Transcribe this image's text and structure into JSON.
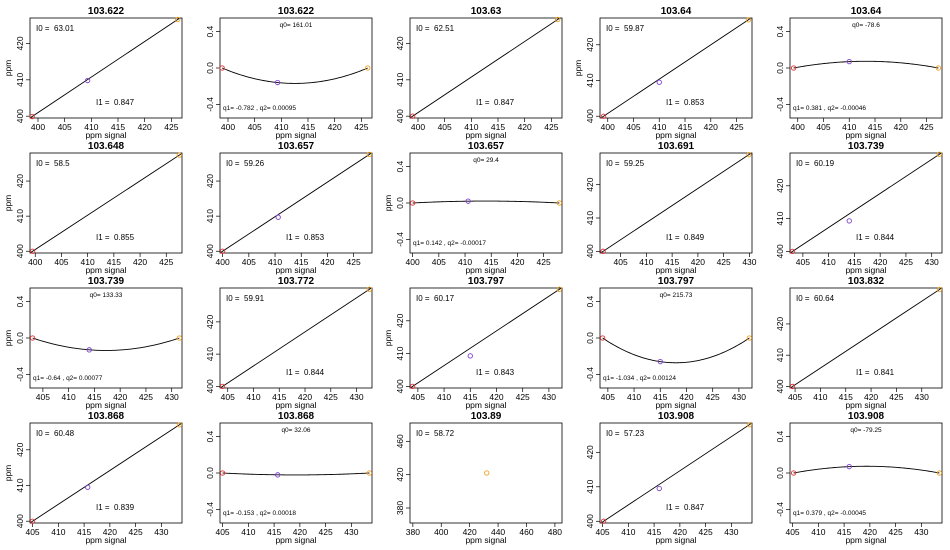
{
  "chart_data": [
    {
      "type": "line",
      "title": "103.622",
      "model": "linear",
      "xlabel": "ppm signal",
      "ylabel": "ppm",
      "xlim": [
        398.5,
        427
      ],
      "ylim": [
        399.5,
        427
      ],
      "xticks": [
        400,
        405,
        410,
        415,
        420,
        425
      ],
      "yticks": [
        400,
        410,
        420
      ],
      "anno_left_label": "I0 =",
      "anno_left_value": "63.01",
      "anno_right_label": "I1 =",
      "anno_right_value": "0.847",
      "points": [
        {
          "x": 398.9,
          "y": 399.9,
          "color": "#e03030"
        },
        {
          "x": 409.3,
          "y": 409.8,
          "color": "#7a40d0"
        },
        {
          "x": 426.2,
          "y": 426.6,
          "color": "#f0a020"
        }
      ]
    },
    {
      "type": "line",
      "title": "103.622",
      "model": "quadratic",
      "xlabel": "ppm signal",
      "ylabel": "",
      "xlim": [
        398.5,
        427
      ],
      "ylim": [
        -0.55,
        0.55
      ],
      "xticks": [
        400,
        405,
        410,
        415,
        420,
        425
      ],
      "yticks": [
        -0.4,
        0.0,
        0.4
      ],
      "anno_top": "q0= 161.01",
      "anno_bottom": "q1= -0.782 , q2= 0.00095",
      "points": [
        {
          "x": 398.9,
          "y": 0.0,
          "color": "#e03030"
        },
        {
          "x": 409.3,
          "y": -0.16,
          "color": "#7a40d0"
        },
        {
          "x": 426.2,
          "y": 0.0,
          "color": "#f0a020"
        }
      ]
    },
    {
      "type": "line",
      "title": "103.63",
      "model": "linear",
      "xlabel": "ppm signal",
      "ylabel": "",
      "xlim": [
        398.5,
        427
      ],
      "ylim": [
        399.5,
        427
      ],
      "xticks": [
        400,
        405,
        410,
        415,
        420,
        425
      ],
      "yticks": [
        400,
        410,
        420
      ],
      "anno_left_label": "I0 =",
      "anno_left_value": "62.51",
      "anno_right_label": "I1 =",
      "anno_right_value": "0.847",
      "points": [
        {
          "x": 399.0,
          "y": 400.0,
          "color": "#e03030"
        },
        {
          "x": 426.2,
          "y": 426.6,
          "color": "#f0a020"
        }
      ]
    },
    {
      "type": "line",
      "title": "103.64",
      "model": "linear",
      "xlabel": "ppm signal",
      "ylabel": "ppm",
      "xlim": [
        398.5,
        428
      ],
      "ylim": [
        399.5,
        427.5
      ],
      "xticks": [
        400,
        405,
        410,
        415,
        420,
        425
      ],
      "yticks": [
        400,
        410,
        420
      ],
      "anno_left_label": "I0 =",
      "anno_left_value": "59.87",
      "anno_right_label": "I1 =",
      "anno_right_value": "0.853",
      "points": [
        {
          "x": 399.2,
          "y": 400.0,
          "color": "#e03030"
        },
        {
          "x": 410.0,
          "y": 409.5,
          "color": "#7a40d0"
        },
        {
          "x": 427.3,
          "y": 427.0,
          "color": "#f0a020"
        }
      ]
    },
    {
      "type": "line",
      "title": "103.64",
      "model": "quadratic",
      "xlabel": "ppm signal",
      "ylabel": "",
      "xlim": [
        398.5,
        428
      ],
      "ylim": [
        -0.55,
        0.55
      ],
      "xticks": [
        400,
        405,
        410,
        415,
        420,
        425
      ],
      "yticks": [
        -0.4,
        0.0,
        0.4
      ],
      "anno_top": "q0= -78.6",
      "anno_bottom": "q1= 0.381 , q2= -0.00046",
      "points": [
        {
          "x": 399.2,
          "y": 0.0,
          "color": "#e03030"
        },
        {
          "x": 410.0,
          "y": 0.07,
          "color": "#7a40d0"
        },
        {
          "x": 427.3,
          "y": 0.0,
          "color": "#f0a020"
        }
      ]
    },
    {
      "type": "line",
      "title": "103.648",
      "model": "linear",
      "xlabel": "ppm signal",
      "ylabel": "ppm",
      "xlim": [
        399,
        428
      ],
      "ylim": [
        399.5,
        428
      ],
      "xticks": [
        400,
        405,
        410,
        415,
        420,
        425
      ],
      "yticks": [
        400,
        410,
        420
      ],
      "anno_left_label": "I0 =",
      "anno_left_value": "58.5",
      "anno_right_label": "I1 =",
      "anno_right_value": "0.855",
      "points": [
        {
          "x": 399.5,
          "y": 400.0,
          "color": "#e03030"
        },
        {
          "x": 427.5,
          "y": 427.4,
          "color": "#f0a020"
        }
      ]
    },
    {
      "type": "line",
      "title": "103.657",
      "model": "linear",
      "xlabel": "ppm signal",
      "ylabel": "",
      "xlim": [
        399.5,
        428.5
      ],
      "ylim": [
        399.5,
        428
      ],
      "xticks": [
        400,
        405,
        410,
        415,
        420,
        425
      ],
      "yticks": [
        400,
        410,
        420
      ],
      "anno_left_label": "I0 =",
      "anno_left_value": "59.26",
      "anno_right_label": "I1 =",
      "anno_right_value": "0.853",
      "points": [
        {
          "x": 400.0,
          "y": 400.0,
          "color": "#e03030"
        },
        {
          "x": 410.6,
          "y": 409.7,
          "color": "#7a40d0"
        },
        {
          "x": 428.0,
          "y": 427.6,
          "color": "#f0a020"
        }
      ]
    },
    {
      "type": "line",
      "title": "103.657",
      "model": "quadratic",
      "xlabel": "ppm signal",
      "ylabel": "ppm",
      "xlim": [
        399.5,
        428.5
      ],
      "ylim": [
        -0.55,
        0.55
      ],
      "xticks": [
        400,
        405,
        410,
        415,
        420,
        425
      ],
      "yticks": [
        -0.4,
        0.0,
        0.4
      ],
      "anno_top": "q0= 29.4",
      "anno_bottom": "q1= 0.142 , q2= -0.00017",
      "points": [
        {
          "x": 400.0,
          "y": 0.0,
          "color": "#e03030"
        },
        {
          "x": 410.6,
          "y": 0.02,
          "color": "#7a40d0"
        },
        {
          "x": 428.0,
          "y": 0.0,
          "color": "#f0a020"
        }
      ]
    },
    {
      "type": "line",
      "title": "103.691",
      "model": "linear",
      "xlabel": "ppm signal",
      "ylabel": "",
      "xlim": [
        401,
        430.5
      ],
      "ylim": [
        399.5,
        429.5
      ],
      "xticks": [
        405,
        410,
        415,
        420,
        425,
        430
      ],
      "yticks": [
        400,
        410,
        420
      ],
      "anno_left_label": "I0 =",
      "anno_left_value": "59.25",
      "anno_right_label": "I1 =",
      "anno_right_value": "0.849",
      "points": [
        {
          "x": 401.6,
          "y": 400.0,
          "color": "#e03030"
        },
        {
          "x": 429.9,
          "y": 429.0,
          "color": "#f0a020"
        }
      ]
    },
    {
      "type": "line",
      "title": "103.739",
      "model": "linear",
      "xlabel": "ppm signal",
      "ylabel": "",
      "xlim": [
        402.5,
        432
      ],
      "ylim": [
        399.5,
        430
      ],
      "xticks": [
        405,
        410,
        415,
        420,
        425,
        430
      ],
      "yticks": [
        400,
        410,
        420
      ],
      "anno_left_label": "I0 =",
      "anno_left_value": "60.19",
      "anno_right_label": "I1 =",
      "anno_right_value": "0.844",
      "points": [
        {
          "x": 403.0,
          "y": 400.0,
          "color": "#e03030"
        },
        {
          "x": 414.0,
          "y": 409.3,
          "color": "#7a40d0"
        },
        {
          "x": 431.5,
          "y": 429.6,
          "color": "#f0a020"
        }
      ]
    },
    {
      "type": "line",
      "title": "103.739",
      "model": "quadratic",
      "xlabel": "ppm signal",
      "ylabel": "ppm",
      "xlim": [
        402.5,
        432
      ],
      "ylim": [
        -0.55,
        0.55
      ],
      "xticks": [
        405,
        410,
        415,
        420,
        425,
        430
      ],
      "yticks": [
        -0.4,
        0.0,
        0.4
      ],
      "anno_top": "q0= 133.33",
      "anno_bottom": "q1= -0.64 , q2= 0.00077",
      "points": [
        {
          "x": 403.0,
          "y": 0.0,
          "color": "#e03030"
        },
        {
          "x": 414.0,
          "y": -0.13,
          "color": "#7a40d0"
        },
        {
          "x": 431.5,
          "y": 0.0,
          "color": "#f0a020"
        }
      ]
    },
    {
      "type": "line",
      "title": "103.772",
      "model": "linear",
      "xlabel": "ppm signal",
      "ylabel": "",
      "xlim": [
        403.5,
        433
      ],
      "ylim": [
        399.5,
        430.5
      ],
      "xticks": [
        405,
        410,
        415,
        420,
        425,
        430
      ],
      "yticks": [
        400,
        410,
        420
      ],
      "anno_left_label": "I0 =",
      "anno_left_value": "59.91",
      "anno_right_label": "I1 =",
      "anno_right_value": "0.844",
      "points": [
        {
          "x": 404.0,
          "y": 400.0,
          "color": "#e03030"
        },
        {
          "x": 432.5,
          "y": 430.1,
          "color": "#f0a020"
        }
      ]
    },
    {
      "type": "line",
      "title": "103.797",
      "model": "linear",
      "xlabel": "ppm signal",
      "ylabel": "ppm",
      "xlim": [
        403.5,
        432.5
      ],
      "ylim": [
        399.5,
        430
      ],
      "xticks": [
        405,
        410,
        415,
        420,
        425,
        430
      ],
      "yticks": [
        400,
        410,
        420
      ],
      "anno_left_label": "I0 =",
      "anno_left_value": "60.17",
      "anno_right_label": "I1 =",
      "anno_right_value": "0.843",
      "points": [
        {
          "x": 404.0,
          "y": 400.0,
          "color": "#e03030"
        },
        {
          "x": 415.0,
          "y": 409.3,
          "color": "#7a40d0"
        },
        {
          "x": 432.0,
          "y": 429.6,
          "color": "#f0a020"
        }
      ]
    },
    {
      "type": "line",
      "title": "103.797",
      "model": "quadratic",
      "xlabel": "ppm signal",
      "ylabel": "",
      "xlim": [
        403.5,
        432.5
      ],
      "ylim": [
        -0.55,
        0.55
      ],
      "xticks": [
        405,
        410,
        415,
        420,
        425,
        430
      ],
      "yticks": [
        -0.4,
        0.0,
        0.4
      ],
      "anno_top": "q0= 215.73",
      "anno_bottom": "q1= -1.034 , q2= 0.00124",
      "points": [
        {
          "x": 404.0,
          "y": 0.0,
          "color": "#e03030"
        },
        {
          "x": 415.0,
          "y": -0.26,
          "color": "#7a40d0"
        },
        {
          "x": 432.0,
          "y": 0.0,
          "color": "#f0a020"
        }
      ]
    },
    {
      "type": "line",
      "title": "103.832",
      "model": "linear",
      "xlabel": "ppm signal",
      "ylabel": "",
      "xlim": [
        404,
        434
      ],
      "ylim": [
        399.5,
        431.5
      ],
      "xticks": [
        405,
        410,
        415,
        420,
        425,
        430
      ],
      "yticks": [
        400,
        410,
        420
      ],
      "anno_left_label": "I0 =",
      "anno_left_value": "60.64",
      "anno_right_label": "I1 =",
      "anno_right_value": "0.841",
      "points": [
        {
          "x": 404.5,
          "y": 400.0,
          "color": "#e03030"
        },
        {
          "x": 433.5,
          "y": 431.0,
          "color": "#f0a020"
        }
      ]
    },
    {
      "type": "line",
      "title": "103.868",
      "model": "linear",
      "xlabel": "ppm signal",
      "ylabel": "ppm",
      "xlim": [
        404.5,
        434
      ],
      "ylim": [
        399.5,
        427.5
      ],
      "xticks": [
        405,
        410,
        415,
        420,
        425,
        430
      ],
      "yticks": [
        400,
        410,
        420
      ],
      "anno_left_label": "I0 =",
      "anno_left_value": "60.48",
      "anno_right_label": "I1 =",
      "anno_right_value": "0.839",
      "points": [
        {
          "x": 405.0,
          "y": 400.0,
          "color": "#e03030"
        },
        {
          "x": 415.7,
          "y": 409.5,
          "color": "#7a40d0"
        },
        {
          "x": 433.5,
          "y": 427.0,
          "color": "#f0a020"
        }
      ]
    },
    {
      "type": "line",
      "title": "103.868",
      "model": "quadratic",
      "xlabel": "ppm signal",
      "ylabel": "",
      "xlim": [
        404.5,
        434
      ],
      "ylim": [
        -0.55,
        0.55
      ],
      "xticks": [
        405,
        410,
        415,
        420,
        425,
        430
      ],
      "yticks": [
        -0.4,
        0.0,
        0.4
      ],
      "anno_top": "q0= 32.06",
      "anno_bottom": "q1= -0.153 , q2= 0.00018",
      "points": [
        {
          "x": 405.0,
          "y": 0.0,
          "color": "#e03030"
        },
        {
          "x": 415.7,
          "y": -0.02,
          "color": "#7a40d0"
        },
        {
          "x": 433.5,
          "y": 0.0,
          "color": "#f0a020"
        }
      ]
    },
    {
      "type": "scatter",
      "title": "103.89",
      "model": "none",
      "xlabel": "ppm signal",
      "ylabel": "",
      "xlim": [
        378,
        485
      ],
      "ylim": [
        362,
        482
      ],
      "xticks": [
        380,
        400,
        420,
        440,
        460,
        480
      ],
      "yticks": [
        380,
        420,
        460
      ],
      "anno_left_label": "I0 =",
      "anno_left_value": "58.72",
      "points": [
        {
          "x": 432.0,
          "y": 422.0,
          "color": "#f0a020"
        }
      ]
    },
    {
      "type": "line",
      "title": "103.908",
      "model": "linear",
      "xlabel": "ppm signal",
      "ylabel": "",
      "xlim": [
        404.5,
        434
      ],
      "ylim": [
        399.5,
        428.5
      ],
      "xticks": [
        405,
        410,
        415,
        420,
        425,
        430
      ],
      "yticks": [
        400,
        410,
        420
      ],
      "anno_left_label": "I0 =",
      "anno_left_value": "57.23",
      "anno_right_label": "I1 =",
      "anno_right_value": "0.847",
      "points": [
        {
          "x": 405.2,
          "y": 400.0,
          "color": "#e03030"
        },
        {
          "x": 416.0,
          "y": 409.5,
          "color": "#7a40d0"
        },
        {
          "x": 433.5,
          "y": 428.0,
          "color": "#f0a020"
        }
      ]
    },
    {
      "type": "line",
      "title": "103.908",
      "model": "quadratic",
      "xlabel": "ppm signal",
      "ylabel": "",
      "xlim": [
        404.5,
        434
      ],
      "ylim": [
        -0.55,
        0.55
      ],
      "xticks": [
        405,
        410,
        415,
        420,
        425,
        430
      ],
      "yticks": [
        -0.4,
        0.0,
        0.4
      ],
      "anno_top": "q0= -79.25",
      "anno_bottom": "q1= 0.379 , q2= -0.00045",
      "points": [
        {
          "x": 405.2,
          "y": 0.0,
          "color": "#e03030"
        },
        {
          "x": 416.0,
          "y": 0.07,
          "color": "#7a40d0"
        },
        {
          "x": 433.5,
          "y": 0.0,
          "color": "#f0a020"
        }
      ]
    }
  ]
}
